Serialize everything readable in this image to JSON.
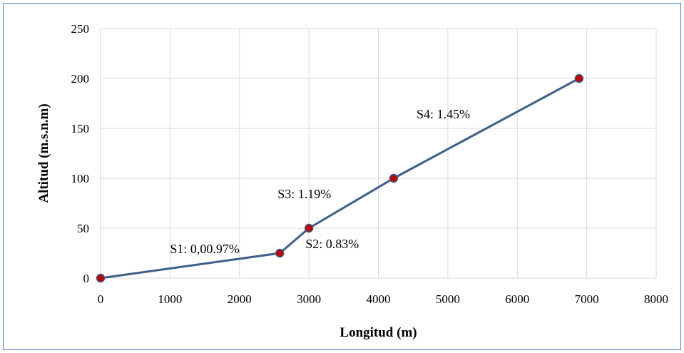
{
  "chart_data": {
    "type": "line",
    "title": "",
    "xlabel": "Longitud (m)",
    "ylabel": "Altitud (m.s.n.m)",
    "xlim": [
      0,
      8000
    ],
    "ylim": [
      0,
      250
    ],
    "x_ticks": [
      0,
      1000,
      2000,
      3000,
      4000,
      5000,
      6000,
      7000,
      8000
    ],
    "y_ticks": [
      0,
      50,
      100,
      150,
      200,
      250
    ],
    "grid": true,
    "legend": "none",
    "series": [
      {
        "x": [
          0,
          2580,
          3000,
          4220,
          6890
        ],
        "y": [
          0,
          25,
          50,
          100,
          200
        ],
        "line_color": "#3c5f8c",
        "marker_color": "#c00000"
      }
    ],
    "annotations": [
      {
        "text": "S1: 0,00.97%",
        "x": 1000,
        "y": 25
      },
      {
        "text": "S2: 0.83%",
        "x": 2950,
        "y": 30
      },
      {
        "text": "S3: 1.19%",
        "x": 2550,
        "y": 80
      },
      {
        "text": "S4: 1.45%",
        "x": 4550,
        "y": 160
      }
    ]
  }
}
